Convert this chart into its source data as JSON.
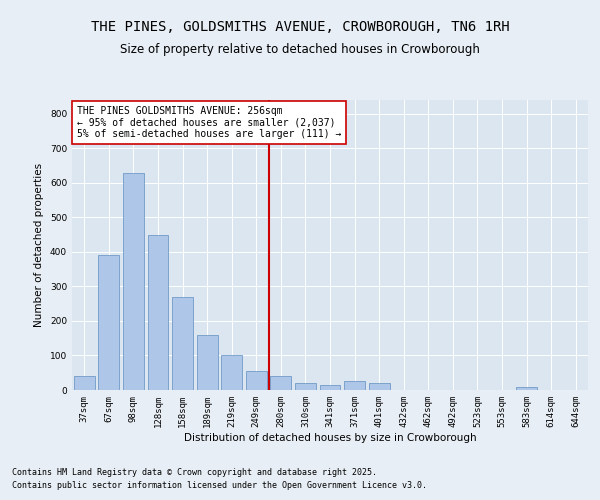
{
  "title": "THE PINES, GOLDSMITHS AVENUE, CROWBOROUGH, TN6 1RH",
  "subtitle": "Size of property relative to detached houses in Crowborough",
  "xlabel": "Distribution of detached houses by size in Crowborough",
  "ylabel": "Number of detached properties",
  "categories": [
    "37sqm",
    "67sqm",
    "98sqm",
    "128sqm",
    "158sqm",
    "189sqm",
    "219sqm",
    "249sqm",
    "280sqm",
    "310sqm",
    "341sqm",
    "371sqm",
    "401sqm",
    "432sqm",
    "462sqm",
    "492sqm",
    "523sqm",
    "553sqm",
    "583sqm",
    "614sqm",
    "644sqm"
  ],
  "values": [
    40,
    390,
    630,
    450,
    270,
    160,
    100,
    55,
    40,
    20,
    15,
    25,
    20,
    0,
    0,
    0,
    0,
    0,
    10,
    0,
    0
  ],
  "bar_color": "#aec6e8",
  "bar_edge_color": "#6090c0",
  "vline_x": 7.5,
  "vline_color": "#cc0000",
  "annotation_text": "THE PINES GOLDSMITHS AVENUE: 256sqm\n← 95% of detached houses are smaller (2,037)\n5% of semi-detached houses are larger (111) →",
  "annotation_box_color": "#ffffff",
  "annotation_box_edge": "#cc0000",
  "ylim": [
    0,
    840
  ],
  "yticks": [
    0,
    100,
    200,
    300,
    400,
    500,
    600,
    700,
    800
  ],
  "background_color": "#e8eef5",
  "plot_bg_color": "#dce6f0",
  "footer_line1": "Contains HM Land Registry data © Crown copyright and database right 2025.",
  "footer_line2": "Contains public sector information licensed under the Open Government Licence v3.0.",
  "title_fontsize": 10,
  "subtitle_fontsize": 8.5,
  "axis_label_fontsize": 7.5,
  "tick_fontsize": 6.5,
  "annotation_fontsize": 7,
  "footer_fontsize": 6
}
